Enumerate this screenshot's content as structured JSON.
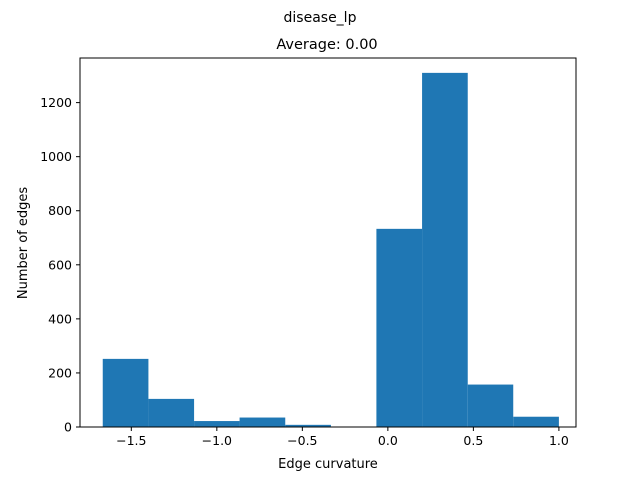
{
  "chart_data": {
    "type": "bar",
    "suptitle": "disease_lp",
    "title": "Average: 0.00",
    "xlabel": "Edge curvature",
    "ylabel": "Number of edges",
    "xlim": [
      -1.8,
      1.1
    ],
    "ylim": [
      0,
      1365
    ],
    "xticks": [
      -1.5,
      -1.0,
      -0.5,
      0.0,
      0.5,
      1.0
    ],
    "xtick_labels": [
      "−1.5",
      "−1.0",
      "−0.5",
      "0.0",
      "0.5",
      "1.0"
    ],
    "yticks": [
      0,
      200,
      400,
      600,
      800,
      1000,
      1200
    ],
    "ytick_labels": [
      "0",
      "200",
      "400",
      "600",
      "800",
      "1000",
      "1200"
    ],
    "bin_edges": [
      -1.667,
      -1.4,
      -1.133,
      -0.867,
      -0.6,
      -0.333,
      -0.067,
      0.2,
      0.467,
      0.733,
      1.0
    ],
    "counts": [
      252,
      104,
      22,
      35,
      8,
      0,
      733,
      1310,
      157,
      38
    ],
    "color": "#1f77b4",
    "grid": false,
    "legend": false
  }
}
